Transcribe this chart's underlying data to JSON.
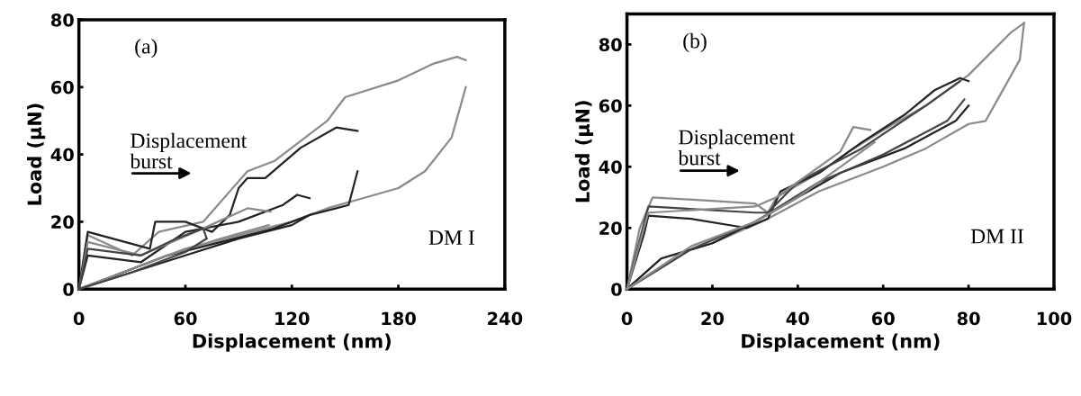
{
  "chart_data": [
    {
      "type": "line",
      "xlabel": "Displacement (nm)",
      "ylabel": "Load (μN)",
      "xlim": [
        0,
        240
      ],
      "ylim": [
        0,
        80
      ],
      "xticks": [
        0,
        60,
        120,
        180,
        240
      ],
      "yticks": [
        0,
        20,
        40,
        60,
        80
      ],
      "grid": false,
      "annotations": [
        "(a)",
        "Displacement\nburst",
        "DM I"
      ],
      "series": [
        {
          "color": "#8a8a8a",
          "x": [
            0,
            5,
            30,
            45,
            70,
            95,
            110,
            140,
            150,
            180,
            200,
            213,
            218
          ],
          "values": [
            0,
            16,
            10,
            17,
            20,
            35,
            38,
            50,
            57,
            62,
            67,
            69,
            68
          ]
        },
        {
          "color": "#8a8a8a",
          "x": [
            0,
            10,
            30,
            60,
            90,
            120,
            140,
            160,
            180,
            195,
            210,
            218
          ],
          "values": [
            0,
            2,
            6,
            12,
            16,
            20,
            24,
            27,
            30,
            35,
            45,
            60
          ]
        },
        {
          "color": "#222222",
          "x": [
            0,
            5,
            40,
            43,
            60,
            75,
            85,
            90,
            95,
            105,
            125,
            145,
            157
          ],
          "values": [
            0,
            17,
            12,
            20,
            20,
            17,
            22,
            30,
            33,
            33,
            42,
            48,
            47
          ]
        },
        {
          "color": "#222222",
          "x": [
            0,
            20,
            50,
            80,
            110,
            130,
            145,
            152,
            157
          ],
          "values": [
            0,
            4,
            10,
            14,
            18,
            22,
            24,
            25,
            35
          ]
        },
        {
          "color": "#222222",
          "x": [
            0,
            5,
            35,
            60,
            90,
            115,
            123,
            130
          ],
          "values": [
            0,
            10,
            8,
            17,
            20,
            25,
            28,
            27
          ]
        },
        {
          "color": "#222222",
          "x": [
            0,
            30,
            60,
            90,
            120,
            130
          ],
          "values": [
            0,
            5,
            10,
            15,
            19,
            22
          ]
        },
        {
          "color": "#8a8a8a",
          "x": [
            0,
            5,
            35,
            70,
            95,
            108
          ],
          "values": [
            0,
            14,
            10,
            18,
            24,
            23
          ]
        },
        {
          "color": "#8a8a8a",
          "x": [
            0,
            20,
            50,
            80,
            107
          ],
          "values": [
            0,
            4,
            10,
            15,
            19
          ]
        },
        {
          "color": "#444444",
          "x": [
            0,
            5,
            35,
            55,
            70,
            72
          ],
          "values": [
            0,
            12,
            10,
            15,
            18,
            15
          ]
        },
        {
          "color": "#444444",
          "x": [
            0,
            30,
            60,
            72
          ],
          "values": [
            0,
            5,
            11,
            15
          ]
        }
      ]
    },
    {
      "type": "line",
      "xlabel": "Displacement (nm)",
      "ylabel": "Load (μN)",
      "xlim": [
        0,
        100
      ],
      "ylim": [
        0,
        90
      ],
      "xticks": [
        0,
        20,
        40,
        60,
        80,
        100
      ],
      "yticks": [
        0,
        20,
        40,
        60,
        80
      ],
      "grid": false,
      "annotations": [
        "(b)",
        "Displacement\nburst",
        "DM II"
      ],
      "series": [
        {
          "color": "#8a8a8a",
          "x": [
            0,
            3,
            6,
            30,
            33,
            35,
            45,
            52,
            60,
            70,
            80,
            90,
            93
          ],
          "values": [
            0,
            20,
            30,
            28,
            25,
            30,
            38,
            45,
            52,
            60,
            70,
            84,
            87
          ]
        },
        {
          "color": "#8a8a8a",
          "x": [
            0,
            8,
            20,
            33,
            45,
            60,
            70,
            80,
            84,
            88,
            92,
            93
          ],
          "values": [
            0,
            10,
            15,
            23,
            32,
            40,
            46,
            54,
            55,
            65,
            75,
            87
          ]
        },
        {
          "color": "#222222",
          "x": [
            0,
            4,
            5,
            15,
            28,
            33,
            36,
            45,
            55,
            65,
            72,
            78,
            80
          ],
          "values": [
            0,
            18,
            24,
            23,
            20,
            23,
            32,
            38,
            48,
            57,
            65,
            69,
            68
          ]
        },
        {
          "color": "#222222",
          "x": [
            0,
            8,
            20,
            30,
            40,
            50,
            65,
            77,
            80
          ],
          "values": [
            0,
            10,
            15,
            22,
            30,
            38,
            46,
            55,
            60
          ]
        },
        {
          "color": "#444444",
          "x": [
            0,
            5,
            30,
            33,
            40,
            55,
            70,
            78
          ],
          "values": [
            0,
            27,
            25,
            25,
            35,
            46,
            60,
            68
          ]
        },
        {
          "color": "#444444",
          "x": [
            0,
            15,
            30,
            45,
            60,
            75,
            79
          ],
          "values": [
            0,
            13,
            22,
            35,
            44,
            55,
            62
          ]
        },
        {
          "color": "#8a8a8a",
          "x": [
            0,
            5,
            30,
            35,
            50,
            53,
            57
          ],
          "values": [
            0,
            25,
            27,
            30,
            45,
            53,
            52
          ]
        },
        {
          "color": "#8a8a8a",
          "x": [
            0,
            15,
            30,
            40,
            50,
            58
          ],
          "values": [
            0,
            14,
            22,
            30,
            40,
            48
          ]
        }
      ]
    }
  ]
}
